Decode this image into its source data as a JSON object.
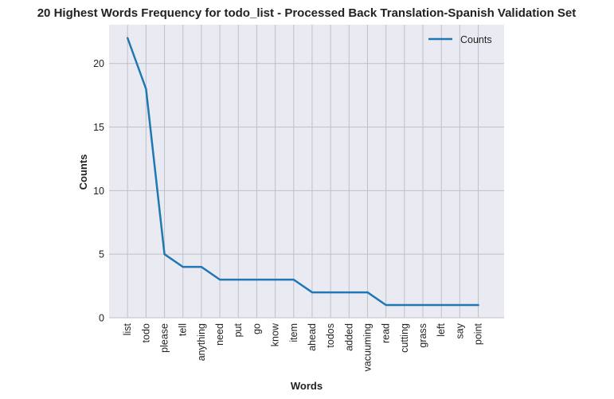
{
  "chart_data": {
    "type": "line",
    "title": "20 Highest Words Frequency for todo_list - Processed Back Translation-Spanish Validation Set",
    "xlabel": "Words",
    "ylabel": "Counts",
    "categories": [
      "list",
      "todo",
      "please",
      "tell",
      "anything",
      "need",
      "put",
      "go",
      "know",
      "item",
      "ahead",
      "todos",
      "added",
      "vacuuming",
      "read",
      "cutting",
      "grass",
      "left",
      "say",
      "point"
    ],
    "series": [
      {
        "name": "Counts",
        "values": [
          22,
          18,
          5,
          4,
          4,
          3,
          3,
          3,
          3,
          3,
          2,
          2,
          2,
          2,
          1,
          1,
          1,
          1,
          1,
          1
        ],
        "color": "#1f77b4"
      }
    ],
    "ylim": [
      0,
      23.05
    ],
    "yticks": [
      0,
      5,
      10,
      15,
      20
    ],
    "grid": true,
    "legend": "top-right",
    "background": "#eaeaf2",
    "grid_color": "#c0c0c8"
  }
}
